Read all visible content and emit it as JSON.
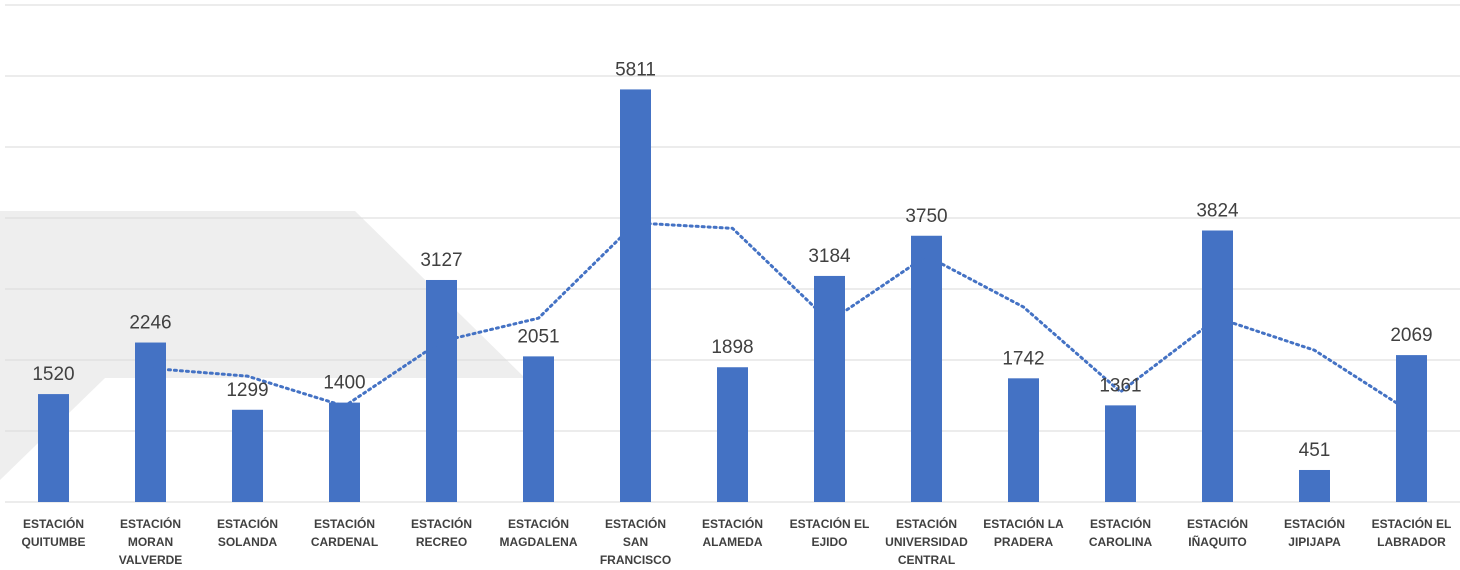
{
  "chart_data": {
    "type": "bar",
    "categories": [
      [
        "ESTACIÓN",
        "QUITUMBE"
      ],
      [
        "ESTACIÓN",
        "MORAN",
        "VALVERDE"
      ],
      [
        "ESTACIÓN",
        "SOLANDA"
      ],
      [
        "ESTACIÓN",
        "CARDENAL"
      ],
      [
        "ESTACIÓN",
        "RECREO"
      ],
      [
        "ESTACIÓN",
        "MAGDALENA"
      ],
      [
        "ESTACIÓN",
        "SAN",
        "FRANCISCO"
      ],
      [
        "ESTACIÓN",
        "ALAMEDA"
      ],
      [
        "ESTACIÓN EL",
        "EJIDO"
      ],
      [
        "ESTACIÓN",
        "UNIVERSIDAD",
        "CENTRAL"
      ],
      [
        "ESTACIÓN LA",
        "PRADERA"
      ],
      [
        "ESTACIÓN",
        "CAROLINA"
      ],
      [
        "ESTACIÓN",
        "IÑAQUITO"
      ],
      [
        "ESTACIÓN",
        "JIPIJAPA"
      ],
      [
        "ESTACIÓN EL",
        "LABRADOR"
      ]
    ],
    "values": [
      1520,
      2246,
      1299,
      1400,
      3127,
      2051,
      5811,
      1898,
      3184,
      3750,
      1742,
      1361,
      3824,
      451,
      2069
    ],
    "data_labels": [
      "1520",
      "2246",
      "1299",
      "1400",
      "3127",
      "2051",
      "5811",
      "1898",
      "3184",
      "3750",
      "1742",
      "1361",
      "3824",
      "451",
      "2069"
    ],
    "trendline": {
      "type": "moving_average",
      "period": 2,
      "style": "dotted"
    },
    "ylim": [
      0,
      7000
    ],
    "grid": true,
    "colors": {
      "bar": "#4472C4",
      "trendline": "#4472C4",
      "gridline": "#D9D9D9",
      "background_shape": "#EEEEEE"
    }
  }
}
